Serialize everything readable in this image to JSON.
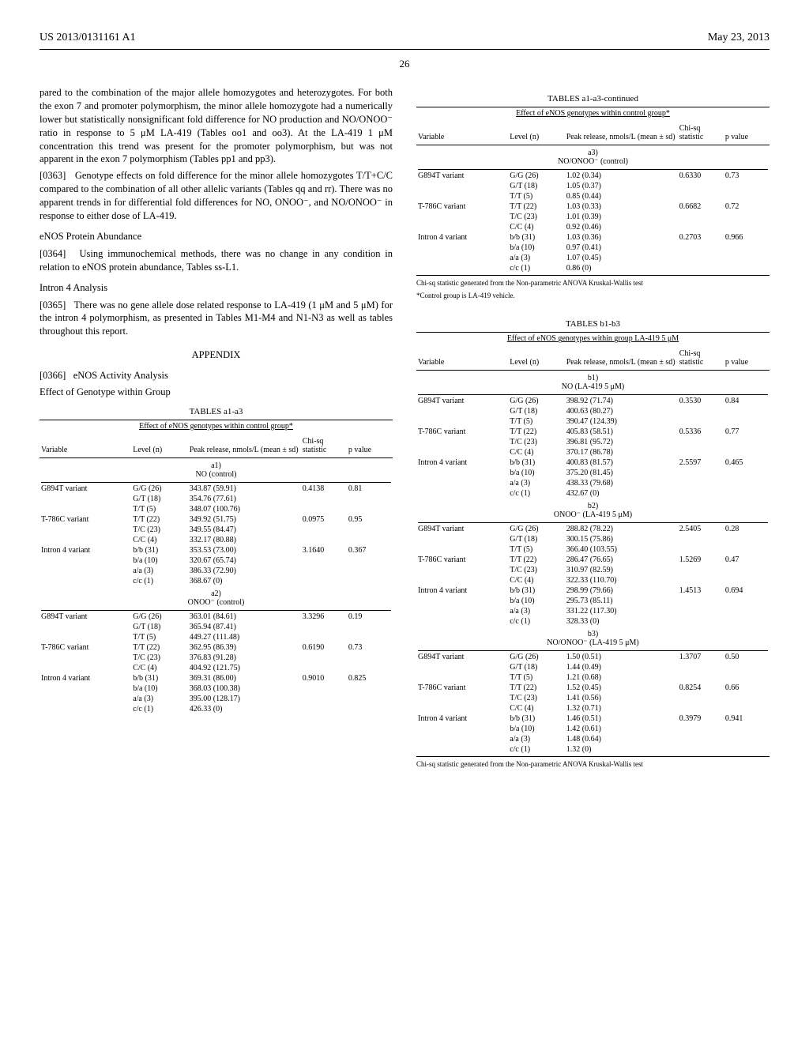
{
  "header": {
    "left": "US 2013/0131161 A1",
    "right": "May 23, 2013"
  },
  "page_number": "26",
  "left_column": {
    "p1": "pared to the combination of the major allele homozygotes and heterozygotes. For both the exon 7 and promoter polymorphism, the minor allele homozygote had a numerically lower but statistically nonsignificant fold difference for NO production and NO/ONOO⁻ ratio in response to 5 μM LA-419 (Tables oo1 and oo3). At the LA-419 1 μM concentration this trend was present for the promoter polymorphism, but was not apparent in the exon 7 polymorphism (Tables pp1 and pp3).",
    "p2_ref": "[0363]",
    "p2": "Genotype effects on fold difference for the minor allele homozygotes T/T+C/C compared to the combination of all other allelic variants (Tables qq and rr). There was no apparent trends in for differential fold differences for NO, ONOO⁻, and NO/ONOO⁻ in response to either dose of LA-419.",
    "h1": "eNOS Protein Abundance",
    "p3_ref": "[0364]",
    "p3": "Using immunochemical methods, there was no change in any condition in relation to eNOS protein abundance, Tables ss-L1.",
    "h2": "Intron 4 Analysis",
    "p4_ref": "[0365]",
    "p4": "There was no gene allele dose related response to LA-419 (1 μM and 5 μM) for the intron 4 polymorphism, as presented in Tables M1-M4 and N1-N3 as well as tables throughout this report.",
    "appendix": "APPENDIX",
    "p5_ref": "[0366]",
    "p5": "eNOS Activity Analysis",
    "p6": "Effect of Genotype within Group"
  },
  "table_a": {
    "title": "TABLES a1-a3",
    "title_cont": "TABLES a1-a3-continued",
    "caption": "Effect of eNOS genotypes within control group*",
    "cols": {
      "c1": "Variable",
      "c2": "Level (n)",
      "c3": "Peak release, nmols/L (mean ± sd)",
      "c4": "Chi-sq statistic",
      "c5": "p value"
    },
    "sub_a1": "a1)\nNO (control)",
    "a1_rows": [
      [
        "G894T variant",
        "G/G (26)",
        "343.87 (59.91)",
        "0.4138",
        "0.81"
      ],
      [
        "",
        "G/T (18)",
        "354.76 (77.61)",
        "",
        ""
      ],
      [
        "",
        "T/T (5)",
        "348.07 (100.76)",
        "",
        ""
      ],
      [
        "T-786C variant",
        "T/T (22)",
        "349.92 (51.75)",
        "0.0975",
        "0.95"
      ],
      [
        "",
        "T/C (23)",
        "349.55 (84.47)",
        "",
        ""
      ],
      [
        "",
        "C/C (4)",
        "332.17 (80.88)",
        "",
        ""
      ],
      [
        "Intron 4 variant",
        "b/b (31)",
        "353.53 (73.00)",
        "3.1640",
        "0.367"
      ],
      [
        "",
        "b/a (10)",
        "320.67 (65.74)",
        "",
        ""
      ],
      [
        "",
        "a/a (3)",
        "386.33 (72.90)",
        "",
        ""
      ],
      [
        "",
        "c/c (1)",
        "368.67 (0)",
        "",
        ""
      ]
    ],
    "sub_a2": "a2)\nONOO⁻ (control)",
    "a2_rows": [
      [
        "G894T variant",
        "G/G (26)",
        "363.01 (84.61)",
        "3.3296",
        "0.19"
      ],
      [
        "",
        "G/T (18)",
        "365.94 (87.41)",
        "",
        ""
      ],
      [
        "",
        "T/T (5)",
        "449.27 (111.48)",
        "",
        ""
      ],
      [
        "T-786C variant",
        "T/T (22)",
        "362.95 (86.39)",
        "0.6190",
        "0.73"
      ],
      [
        "",
        "T/C (23)",
        "376.83 (91.28)",
        "",
        ""
      ],
      [
        "",
        "C/C (4)",
        "404.92 (121.75)",
        "",
        ""
      ],
      [
        "Intron 4 variant",
        "b/b (31)",
        "369.31 (86.00)",
        "0.9010",
        "0.825"
      ],
      [
        "",
        "b/a (10)",
        "368.03 (100.38)",
        "",
        ""
      ],
      [
        "",
        "a/a (3)",
        "395.00 (128.17)",
        "",
        ""
      ],
      [
        "",
        "c/c (1)",
        "426.33 (0)",
        "",
        ""
      ]
    ],
    "sub_a3": "a3)\nNO/ONOO⁻ (control)",
    "a3_rows": [
      [
        "G894T variant",
        "G/G (26)",
        "1.02 (0.34)",
        "0.6330",
        "0.73"
      ],
      [
        "",
        "G/T (18)",
        "1.05 (0.37)",
        "",
        ""
      ],
      [
        "",
        "T/T (5)",
        "0.85 (0.44)",
        "",
        ""
      ],
      [
        "T-786C variant",
        "T/T (22)",
        "1.03 (0.33)",
        "0.6682",
        "0.72"
      ],
      [
        "",
        "T/C (23)",
        "1.01 (0.39)",
        "",
        ""
      ],
      [
        "",
        "C/C (4)",
        "0.92 (0.46)",
        "",
        ""
      ],
      [
        "Intron 4 variant",
        "b/b (31)",
        "1.03 (0.36)",
        "0.2703",
        "0.966"
      ],
      [
        "",
        "b/a (10)",
        "0.97 (0.41)",
        "",
        ""
      ],
      [
        "",
        "a/a (3)",
        "1.07 (0.45)",
        "",
        ""
      ],
      [
        "",
        "c/c (1)",
        "0.86 (0)",
        "",
        ""
      ]
    ],
    "footnote1": "Chi-sq statistic generated from the Non-parametric ANOVA Kruskal-Wallis test",
    "footnote2": "*Control group is LA-419 vehicle."
  },
  "table_b": {
    "title": "TABLES b1-b3",
    "caption": "Effect of eNOS genotypes within group LA-419 5 μM",
    "cols": {
      "c1": "Variable",
      "c2": "Level (n)",
      "c3": "Peak release, nmols/L (mean ± sd)",
      "c4": "Chi-sq statistic",
      "c5": "p value"
    },
    "sub_b1": "b1)\nNO (LA-419 5 μM)",
    "b1_rows": [
      [
        "G894T variant",
        "G/G (26)",
        "398.92 (71.74)",
        "0.3530",
        "0.84"
      ],
      [
        "",
        "G/T (18)",
        "400.63 (80.27)",
        "",
        ""
      ],
      [
        "",
        "T/T (5)",
        "390.47 (124.39)",
        "",
        ""
      ],
      [
        "T-786C variant",
        "T/T (22)",
        "405.83 (58.51)",
        "0.5336",
        "0.77"
      ],
      [
        "",
        "T/C (23)",
        "396.81 (95.72)",
        "",
        ""
      ],
      [
        "",
        "C/C (4)",
        "370.17 (86.78)",
        "",
        ""
      ],
      [
        "Intron 4 variant",
        "b/b (31)",
        "400.83 (81.57)",
        "2.5597",
        "0.465"
      ],
      [
        "",
        "b/a (10)",
        "375.20 (81.45)",
        "",
        ""
      ],
      [
        "",
        "a/a (3)",
        "438.33 (79.68)",
        "",
        ""
      ],
      [
        "",
        "c/c (1)",
        "432.67 (0)",
        "",
        ""
      ]
    ],
    "sub_b2": "b2)\nONOO⁻ (LA-419 5 μM)",
    "b2_rows": [
      [
        "G894T variant",
        "G/G (26)",
        "288.82 (78.22)",
        "2.5405",
        "0.28"
      ],
      [
        "",
        "G/T (18)",
        "300.15 (75.86)",
        "",
        ""
      ],
      [
        "",
        "T/T (5)",
        "366.40 (103.55)",
        "",
        ""
      ],
      [
        "T-786C variant",
        "T/T (22)",
        "286.47 (76.65)",
        "1.5269",
        "0.47"
      ],
      [
        "",
        "T/C (23)",
        "310.97 (82.59)",
        "",
        ""
      ],
      [
        "",
        "C/C (4)",
        "322.33 (110.70)",
        "",
        ""
      ],
      [
        "Intron 4 variant",
        "b/b (31)",
        "298.99 (79.66)",
        "1.4513",
        "0.694"
      ],
      [
        "",
        "b/a (10)",
        "295.73 (85.11)",
        "",
        ""
      ],
      [
        "",
        "a/a (3)",
        "331.22 (117.30)",
        "",
        ""
      ],
      [
        "",
        "c/c (1)",
        "328.33 (0)",
        "",
        ""
      ]
    ],
    "sub_b3": "b3)\nNO/ONOO⁻ (LA-419 5 μM)",
    "b3_rows": [
      [
        "G894T variant",
        "G/G (26)",
        "1.50 (0.51)",
        "1.3707",
        "0.50"
      ],
      [
        "",
        "G/T (18)",
        "1.44 (0.49)",
        "",
        ""
      ],
      [
        "",
        "T/T (5)",
        "1.21 (0.68)",
        "",
        ""
      ],
      [
        "T-786C variant",
        "T/T (22)",
        "1.52 (0.45)",
        "0.8254",
        "0.66"
      ],
      [
        "",
        "T/C (23)",
        "1.41 (0.56)",
        "",
        ""
      ],
      [
        "",
        "C/C (4)",
        "1.32 (0.71)",
        "",
        ""
      ],
      [
        "Intron 4 variant",
        "b/b (31)",
        "1.46 (0.51)",
        "0.3979",
        "0.941"
      ],
      [
        "",
        "b/a (10)",
        "1.42 (0.61)",
        "",
        ""
      ],
      [
        "",
        "a/a (3)",
        "1.48 (0.64)",
        "",
        ""
      ],
      [
        "",
        "c/c (1)",
        "1.32 (0)",
        "",
        ""
      ]
    ],
    "footnote1": "Chi-sq statistic generated from the Non-parametric ANOVA Kruskal-Wallis test"
  }
}
